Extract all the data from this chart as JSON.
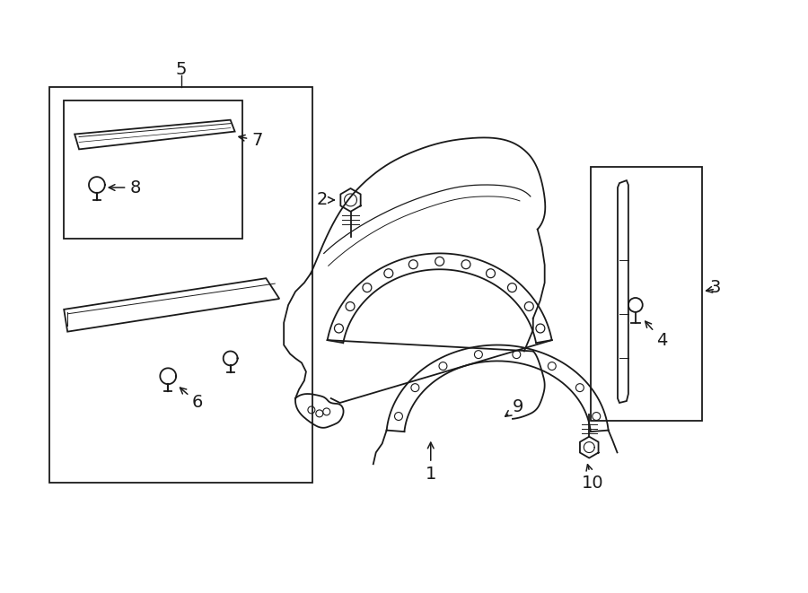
{
  "background_color": "#ffffff",
  "line_color": "#1a1a1a",
  "fig_width": 9.0,
  "fig_height": 6.61,
  "dpi": 100
}
